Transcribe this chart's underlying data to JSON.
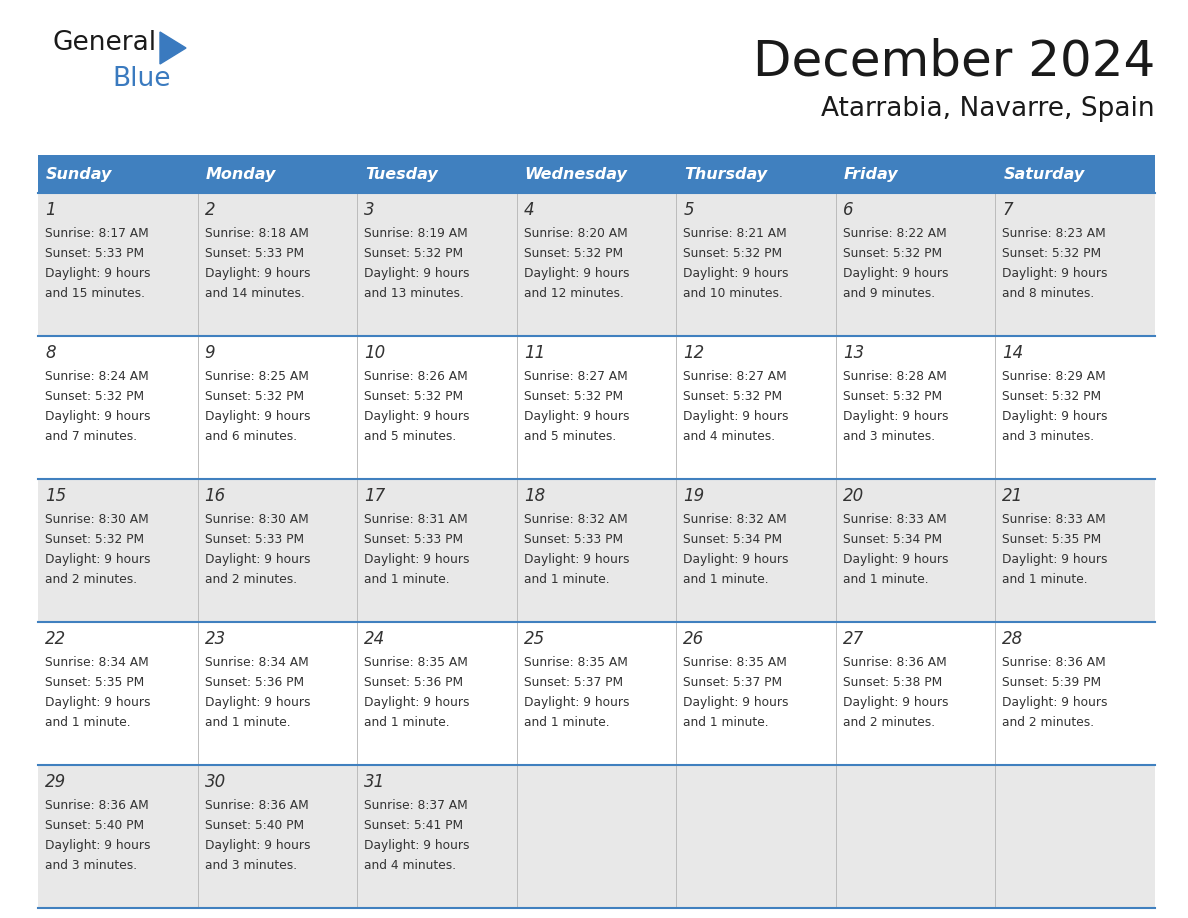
{
  "title": "December 2024",
  "subtitle": "Atarrabia, Navarre, Spain",
  "header_bg": "#4080bf",
  "header_text_color": "#ffffff",
  "cell_bg_even": "#e8e8e8",
  "cell_bg_odd": "#ffffff",
  "text_color": "#333333",
  "days_of_week": [
    "Sunday",
    "Monday",
    "Tuesday",
    "Wednesday",
    "Thursday",
    "Friday",
    "Saturday"
  ],
  "weeks": [
    [
      {
        "day": 1,
        "sunrise": "8:17 AM",
        "sunset": "5:33 PM",
        "daylight": "9 hours",
        "daylight2": "and 15 minutes."
      },
      {
        "day": 2,
        "sunrise": "8:18 AM",
        "sunset": "5:33 PM",
        "daylight": "9 hours",
        "daylight2": "and 14 minutes."
      },
      {
        "day": 3,
        "sunrise": "8:19 AM",
        "sunset": "5:32 PM",
        "daylight": "9 hours",
        "daylight2": "and 13 minutes."
      },
      {
        "day": 4,
        "sunrise": "8:20 AM",
        "sunset": "5:32 PM",
        "daylight": "9 hours",
        "daylight2": "and 12 minutes."
      },
      {
        "day": 5,
        "sunrise": "8:21 AM",
        "sunset": "5:32 PM",
        "daylight": "9 hours",
        "daylight2": "and 10 minutes."
      },
      {
        "day": 6,
        "sunrise": "8:22 AM",
        "sunset": "5:32 PM",
        "daylight": "9 hours",
        "daylight2": "and 9 minutes."
      },
      {
        "day": 7,
        "sunrise": "8:23 AM",
        "sunset": "5:32 PM",
        "daylight": "9 hours",
        "daylight2": "and 8 minutes."
      }
    ],
    [
      {
        "day": 8,
        "sunrise": "8:24 AM",
        "sunset": "5:32 PM",
        "daylight": "9 hours",
        "daylight2": "and 7 minutes."
      },
      {
        "day": 9,
        "sunrise": "8:25 AM",
        "sunset": "5:32 PM",
        "daylight": "9 hours",
        "daylight2": "and 6 minutes."
      },
      {
        "day": 10,
        "sunrise": "8:26 AM",
        "sunset": "5:32 PM",
        "daylight": "9 hours",
        "daylight2": "and 5 minutes."
      },
      {
        "day": 11,
        "sunrise": "8:27 AM",
        "sunset": "5:32 PM",
        "daylight": "9 hours",
        "daylight2": "and 5 minutes."
      },
      {
        "day": 12,
        "sunrise": "8:27 AM",
        "sunset": "5:32 PM",
        "daylight": "9 hours",
        "daylight2": "and 4 minutes."
      },
      {
        "day": 13,
        "sunrise": "8:28 AM",
        "sunset": "5:32 PM",
        "daylight": "9 hours",
        "daylight2": "and 3 minutes."
      },
      {
        "day": 14,
        "sunrise": "8:29 AM",
        "sunset": "5:32 PM",
        "daylight": "9 hours",
        "daylight2": "and 3 minutes."
      }
    ],
    [
      {
        "day": 15,
        "sunrise": "8:30 AM",
        "sunset": "5:32 PM",
        "daylight": "9 hours",
        "daylight2": "and 2 minutes."
      },
      {
        "day": 16,
        "sunrise": "8:30 AM",
        "sunset": "5:33 PM",
        "daylight": "9 hours",
        "daylight2": "and 2 minutes."
      },
      {
        "day": 17,
        "sunrise": "8:31 AM",
        "sunset": "5:33 PM",
        "daylight": "9 hours",
        "daylight2": "and 1 minute."
      },
      {
        "day": 18,
        "sunrise": "8:32 AM",
        "sunset": "5:33 PM",
        "daylight": "9 hours",
        "daylight2": "and 1 minute."
      },
      {
        "day": 19,
        "sunrise": "8:32 AM",
        "sunset": "5:34 PM",
        "daylight": "9 hours",
        "daylight2": "and 1 minute."
      },
      {
        "day": 20,
        "sunrise": "8:33 AM",
        "sunset": "5:34 PM",
        "daylight": "9 hours",
        "daylight2": "and 1 minute."
      },
      {
        "day": 21,
        "sunrise": "8:33 AM",
        "sunset": "5:35 PM",
        "daylight": "9 hours",
        "daylight2": "and 1 minute."
      }
    ],
    [
      {
        "day": 22,
        "sunrise": "8:34 AM",
        "sunset": "5:35 PM",
        "daylight": "9 hours",
        "daylight2": "and 1 minute."
      },
      {
        "day": 23,
        "sunrise": "8:34 AM",
        "sunset": "5:36 PM",
        "daylight": "9 hours",
        "daylight2": "and 1 minute."
      },
      {
        "day": 24,
        "sunrise": "8:35 AM",
        "sunset": "5:36 PM",
        "daylight": "9 hours",
        "daylight2": "and 1 minute."
      },
      {
        "day": 25,
        "sunrise": "8:35 AM",
        "sunset": "5:37 PM",
        "daylight": "9 hours",
        "daylight2": "and 1 minute."
      },
      {
        "day": 26,
        "sunrise": "8:35 AM",
        "sunset": "5:37 PM",
        "daylight": "9 hours",
        "daylight2": "and 1 minute."
      },
      {
        "day": 27,
        "sunrise": "8:36 AM",
        "sunset": "5:38 PM",
        "daylight": "9 hours",
        "daylight2": "and 2 minutes."
      },
      {
        "day": 28,
        "sunrise": "8:36 AM",
        "sunset": "5:39 PM",
        "daylight": "9 hours",
        "daylight2": "and 2 minutes."
      }
    ],
    [
      {
        "day": 29,
        "sunrise": "8:36 AM",
        "sunset": "5:40 PM",
        "daylight": "9 hours",
        "daylight2": "and 3 minutes."
      },
      {
        "day": 30,
        "sunrise": "8:36 AM",
        "sunset": "5:40 PM",
        "daylight": "9 hours",
        "daylight2": "and 3 minutes."
      },
      {
        "day": 31,
        "sunrise": "8:37 AM",
        "sunset": "5:41 PM",
        "daylight": "9 hours",
        "daylight2": "and 4 minutes."
      },
      null,
      null,
      null,
      null
    ]
  ]
}
